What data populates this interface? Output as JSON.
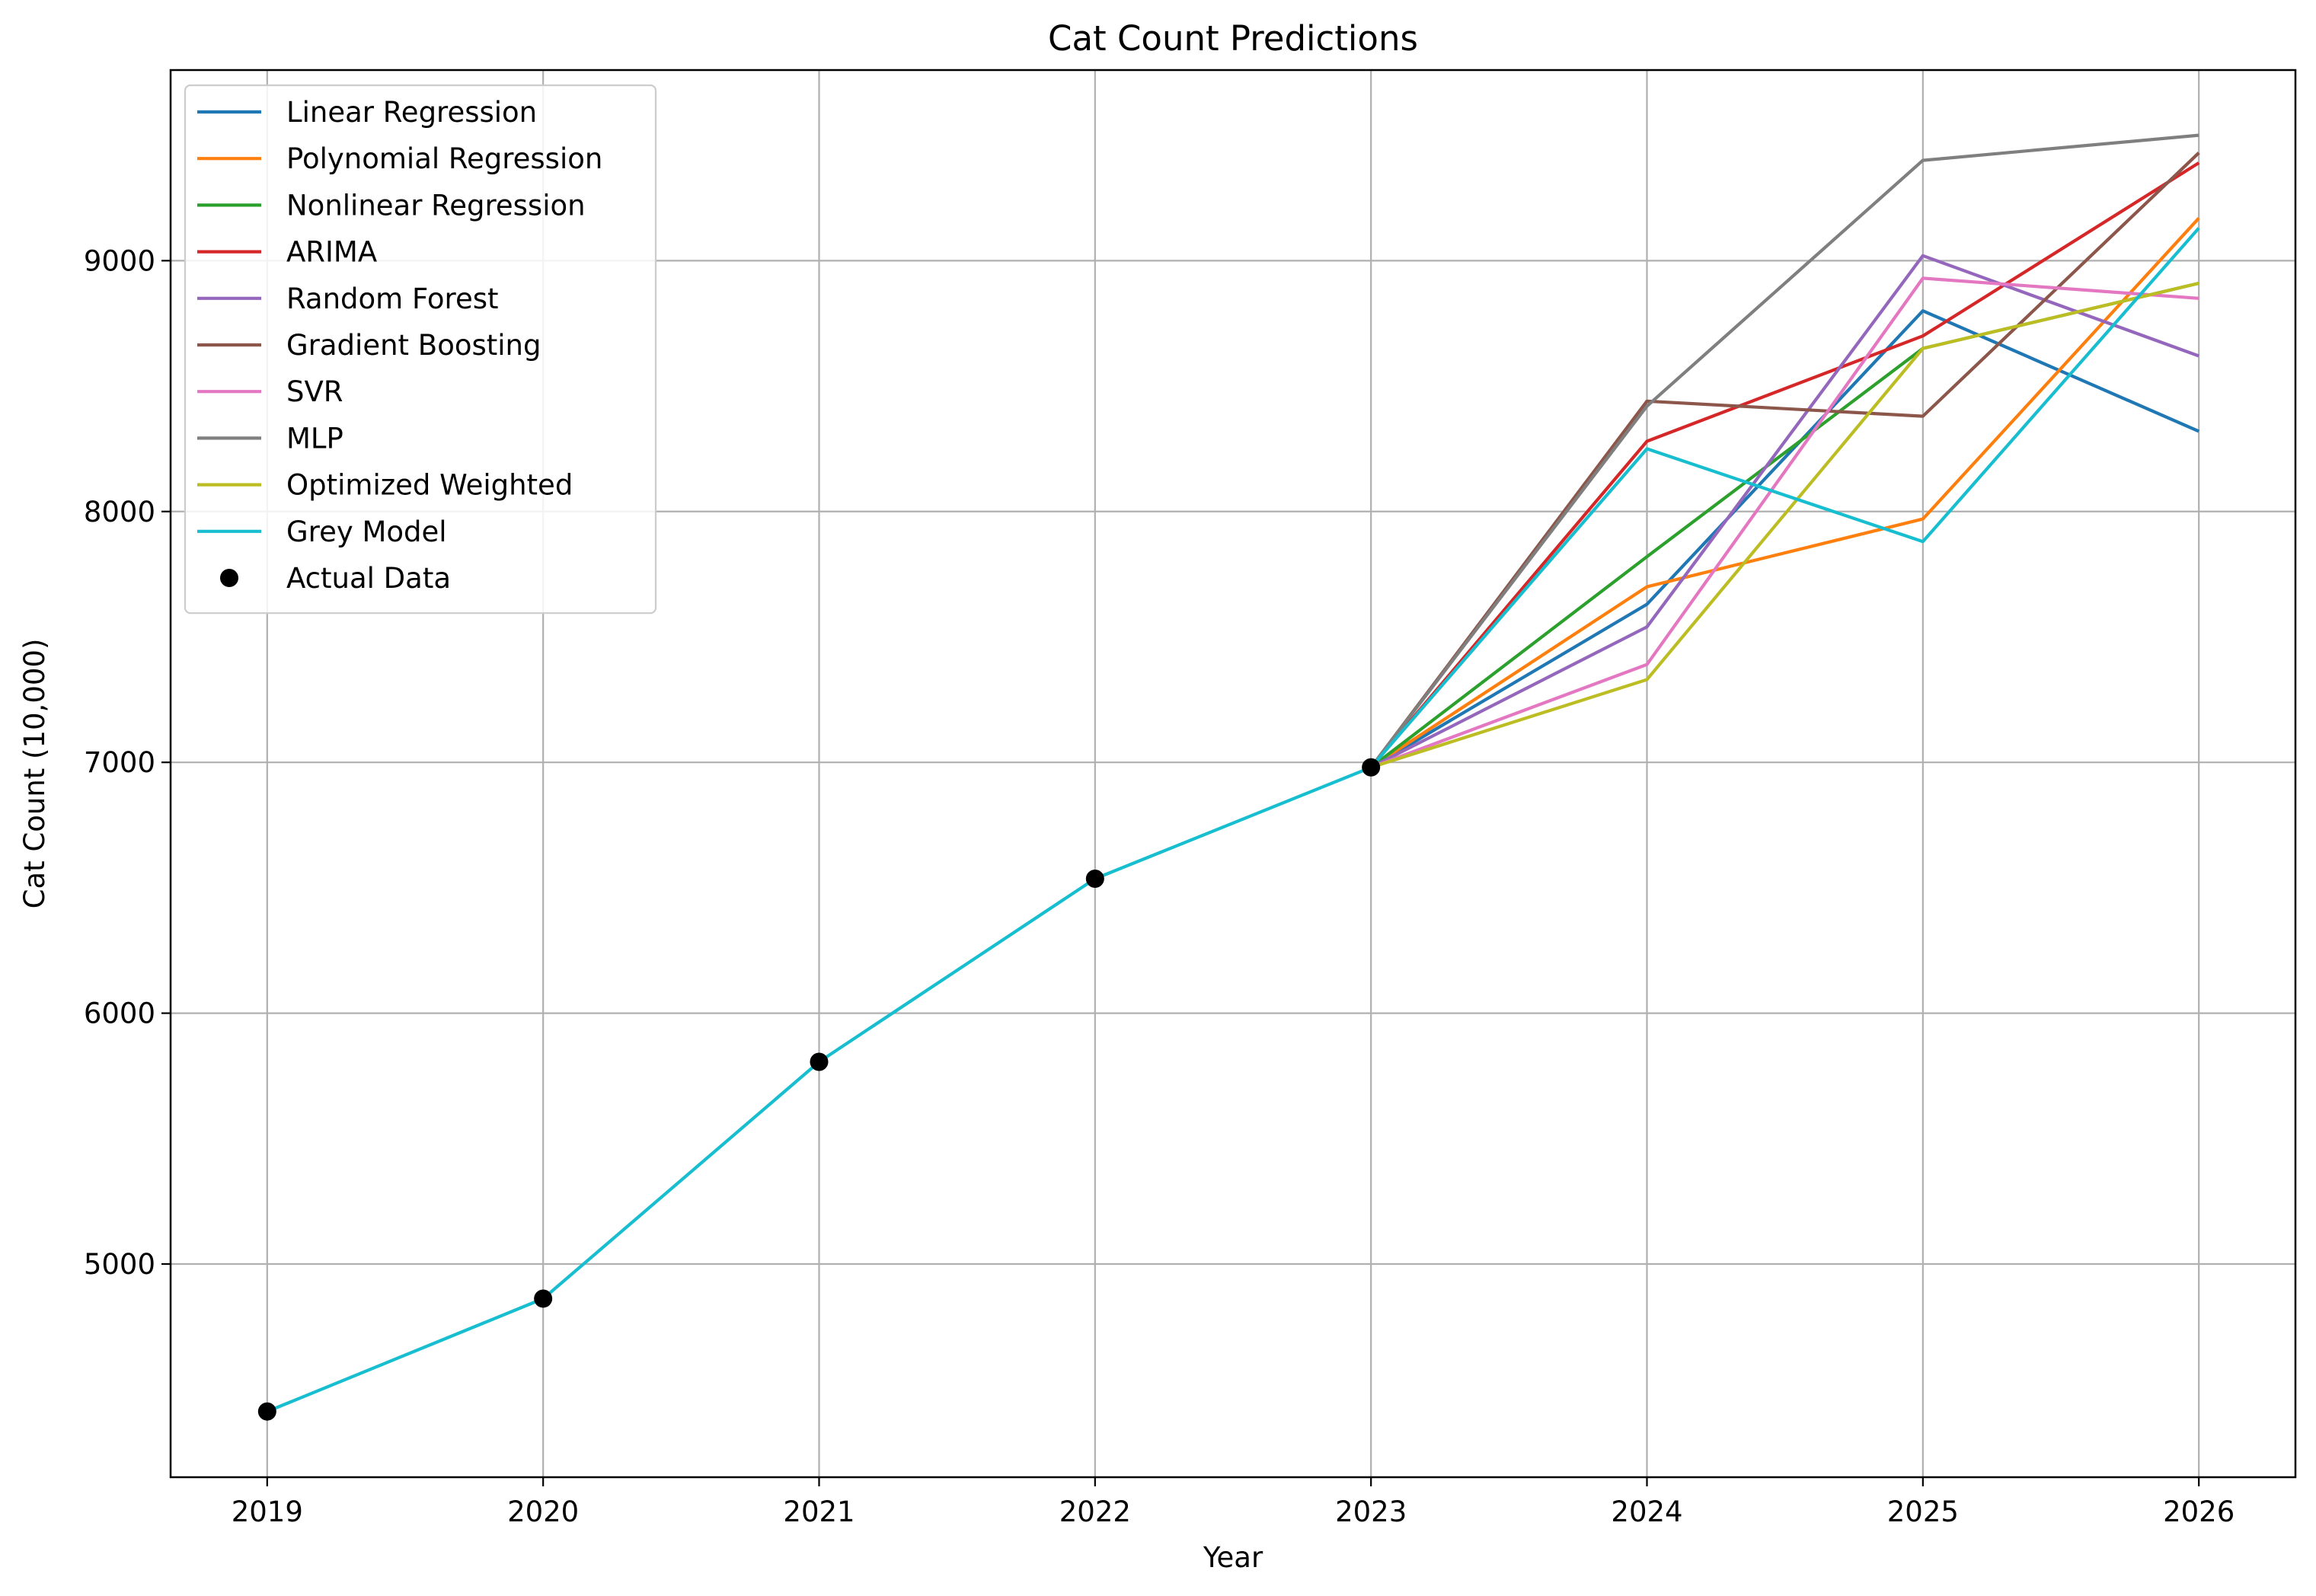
{
  "chart_data": {
    "type": "line",
    "title": "Cat Count Predictions",
    "xlabel": "Year",
    "ylabel": "Cat Count (10,000)",
    "x_ticks": [
      2019,
      2020,
      2021,
      2022,
      2023,
      2024,
      2025,
      2026
    ],
    "y_ticks": [
      5000,
      6000,
      7000,
      8000,
      9000
    ],
    "xlim": [
      2018.65,
      2026.35
    ],
    "ylim": [
      4150,
      9760
    ],
    "grid": true,
    "legend_position": "top-left",
    "actual": {
      "name": "Actual Data",
      "color": "#000000",
      "x": [
        2019,
        2020,
        2021,
        2022,
        2023
      ],
      "values": [
        4412,
        4862,
        5806,
        6536,
        6980
      ]
    },
    "series": [
      {
        "name": "Linear Regression",
        "color": "#1f77b4",
        "x": [
          2023,
          2024,
          2025,
          2026
        ],
        "values": [
          6980,
          7630,
          8800,
          8320
        ]
      },
      {
        "name": "Polynomial Regression",
        "color": "#ff7f0e",
        "x": [
          2023,
          2024,
          2025,
          2026
        ],
        "values": [
          6980,
          7700,
          7970,
          9170
        ]
      },
      {
        "name": "Nonlinear Regression",
        "color": "#2ca02c",
        "x": [
          2023,
          2024,
          2025,
          2026
        ],
        "values": [
          6980,
          7820,
          8650,
          8910
        ]
      },
      {
        "name": "ARIMA",
        "color": "#d62728",
        "x": [
          2023,
          2024,
          2025,
          2026
        ],
        "values": [
          6980,
          8280,
          8700,
          9390
        ]
      },
      {
        "name": "Random Forest",
        "color": "#9467bd",
        "x": [
          2023,
          2024,
          2025,
          2026
        ],
        "values": [
          6980,
          7540,
          9020,
          8620
        ]
      },
      {
        "name": "Gradient Boosting",
        "color": "#8c564b",
        "x": [
          2023,
          2024,
          2025,
          2026
        ],
        "values": [
          6980,
          8440,
          8380,
          9430
        ]
      },
      {
        "name": "SVR",
        "color": "#e377c2",
        "x": [
          2023,
          2024,
          2025,
          2026
        ],
        "values": [
          6980,
          7390,
          8930,
          8850
        ]
      },
      {
        "name": "MLP",
        "color": "#7f7f7f",
        "x": [
          2023,
          2024,
          2025,
          2026
        ],
        "values": [
          6980,
          8420,
          9400,
          9500
        ]
      },
      {
        "name": "Optimized Weighted",
        "color": "#bcbd22",
        "x": [
          2023,
          2024,
          2025,
          2026
        ],
        "values": [
          6980,
          7330,
          8650,
          8910
        ]
      },
      {
        "name": "Grey Model",
        "color": "#17becf",
        "x": [
          2019,
          2020,
          2021,
          2022,
          2023,
          2024,
          2025,
          2026
        ],
        "values": [
          4412,
          4862,
          5806,
          6536,
          6980,
          8250,
          7880,
          9130
        ]
      }
    ]
  }
}
